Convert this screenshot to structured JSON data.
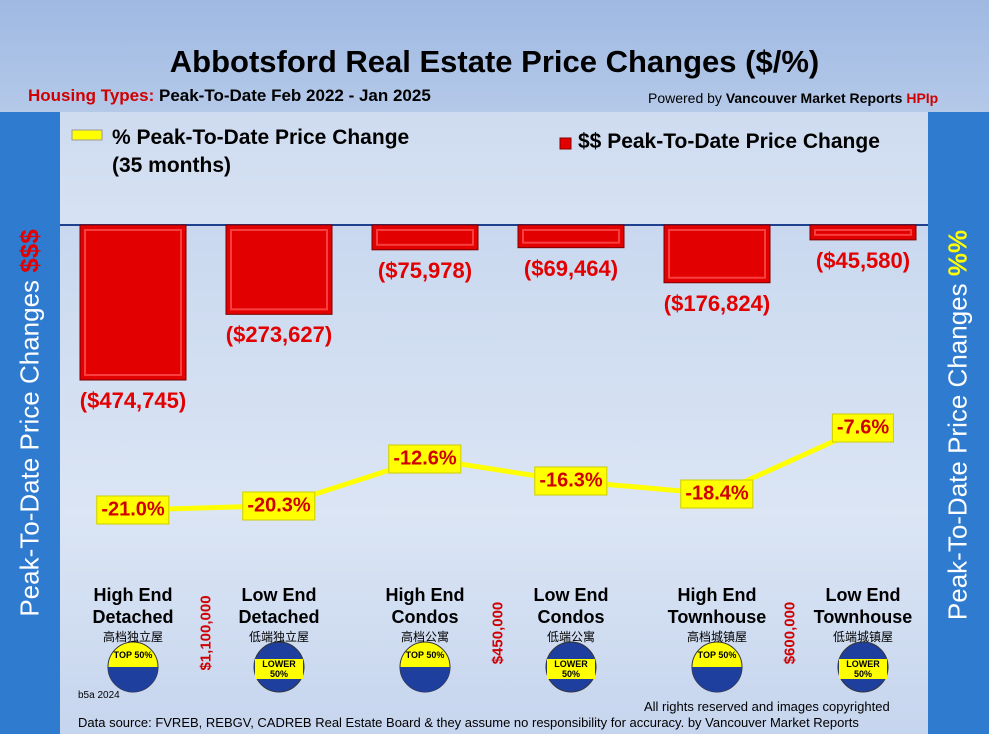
{
  "chart_data": {
    "type": "bar",
    "title": "Abbotsford Real Estate Price Changes ($/%)",
    "subtitle_label": "Housing Types:",
    "subtitle": "Peak-To-Date Feb 2022 - Jan   2025",
    "credit_prefix": "Powered by",
    "credit_name": "Vancouver Market Reports",
    "credit_mark": "HPIp",
    "left_label": "Peak-To-Date Price Changes",
    "left_symbol": "$$$",
    "right_label": "Peak-To-Date  Price  Changes",
    "right_symbol": "%%",
    "categories": [
      "High End Detached",
      "Low End Detached",
      "High End Condos",
      "Low End Condos",
      "High End Townhouse",
      "Low End Townhouse"
    ],
    "category_translations": [
      "高档独立屋",
      "低端独立屋",
      "高档公寓",
      "低端公寓",
      "高档城镇屋",
      "低端城镇屋"
    ],
    "price_splits": [
      "$1,100,000",
      "$450,000",
      "$600,000"
    ],
    "badges": [
      "TOP 50%",
      "LOWER 50%",
      "TOP 50%",
      "LOWER 50%",
      "TOP 50%",
      "LOWER 50%"
    ],
    "series": [
      {
        "name": "$$ Peak-To-Date Price Change",
        "type": "bar",
        "color": "#e30000",
        "values": [
          -474745,
          -273627,
          -75978,
          -69464,
          -176824,
          -45580
        ],
        "value_labels": [
          "($474,745)",
          "($273,627)",
          "($75,978)",
          "($69,464)",
          "($176,824)",
          "($45,580)"
        ]
      },
      {
        "name": "% Peak-To-Date Price Change (35 months)",
        "type": "line",
        "color": "#ffff00",
        "values": [
          -21.0,
          -20.3,
          -12.6,
          -16.3,
          -18.4,
          -7.6
        ],
        "value_labels": [
          "-21.0%",
          "-20.3%",
          "-12.6%",
          "-16.3%",
          "-18.4%",
          "-7.6%"
        ]
      }
    ],
    "footer_code": "b5a 2024",
    "copyright": "All rights reserved and  images copyrighted",
    "source": "Data source: FVREB, REBGV, CADREB Real Estate Board & they assume no responsibility for accuracy. by Vancouver Market Reports"
  }
}
